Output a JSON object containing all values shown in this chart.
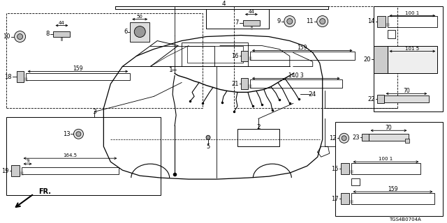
{
  "bg_color": "#ffffff",
  "fig_width": 6.4,
  "fig_height": 3.2,
  "dpi": 100,
  "footnote": "TGS4B0704A"
}
